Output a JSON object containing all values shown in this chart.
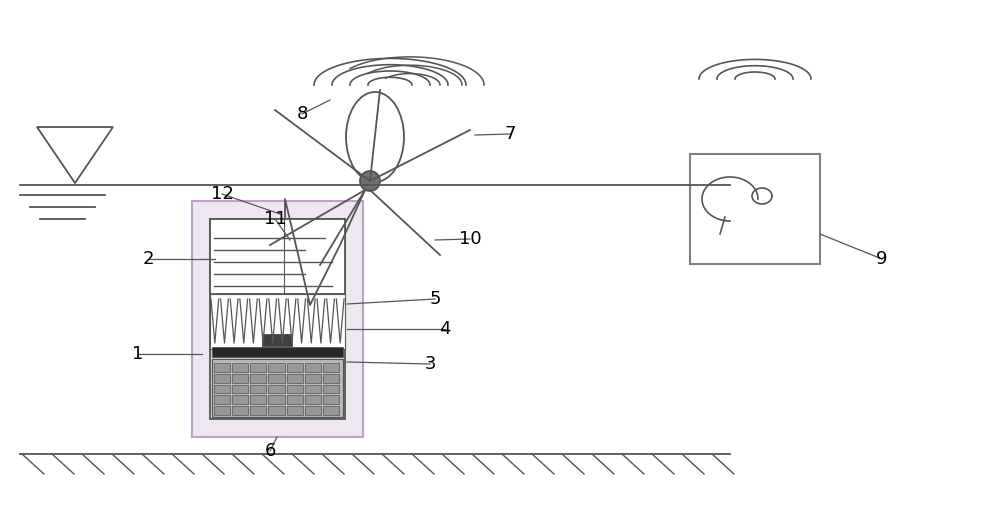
{
  "bg_color": "#ffffff",
  "line_color": "#555555",
  "figsize": [
    10.0,
    5.29
  ],
  "dpi": 100
}
